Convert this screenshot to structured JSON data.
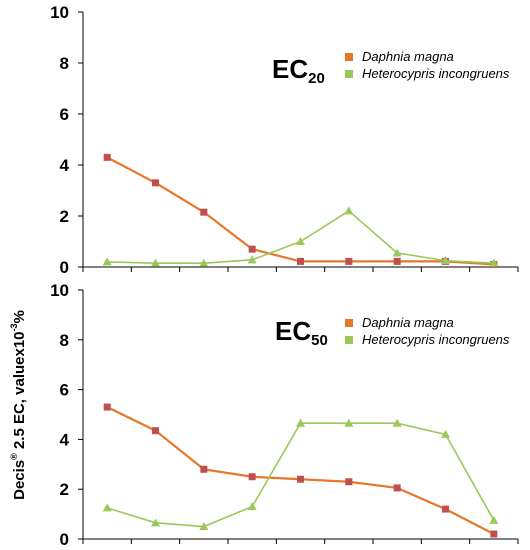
{
  "chart_data": [
    {
      "type": "line",
      "title_main": "EC",
      "title_sub": "20",
      "ylim": [
        0,
        10
      ],
      "yticks": [
        0,
        2,
        4,
        6,
        8,
        10
      ],
      "x": [
        1,
        2,
        3,
        4,
        5,
        6,
        7,
        8,
        9
      ],
      "grid": false,
      "legend_position": "top-right",
      "series": [
        {
          "name": "Daphnia magna",
          "color": "#e8762b",
          "marker_color": "#c0504d",
          "marker": "square",
          "values": [
            4.3,
            3.3,
            2.15,
            0.7,
            0.22,
            0.22,
            0.22,
            0.22,
            0.1
          ]
        },
        {
          "name": "Heterocypris incongruens",
          "color": "#9bc85a",
          "marker_color": "#9bc85a",
          "marker": "triangle",
          "values": [
            0.2,
            0.15,
            0.15,
            0.28,
            1.0,
            2.2,
            0.55,
            0.25,
            0.15
          ]
        }
      ]
    },
    {
      "type": "line",
      "title_main": "EC",
      "title_sub": "50",
      "ylim": [
        0,
        10
      ],
      "yticks": [
        0,
        2,
        4,
        6,
        8,
        10
      ],
      "x": [
        1,
        2,
        3,
        4,
        5,
        6,
        7,
        8,
        9
      ],
      "grid": false,
      "legend_position": "top-right",
      "series": [
        {
          "name": "Daphnia magna",
          "color": "#e8762b",
          "marker_color": "#c0504d",
          "marker": "square",
          "values": [
            5.3,
            4.35,
            2.8,
            2.5,
            2.4,
            2.3,
            2.05,
            1.2,
            0.2
          ]
        },
        {
          "name": "Heterocypris incongruens",
          "color": "#9bc85a",
          "marker_color": "#9bc85a",
          "marker": "triangle",
          "values": [
            1.25,
            0.65,
            0.5,
            1.3,
            4.65,
            4.65,
            4.65,
            4.2,
            0.75
          ]
        }
      ]
    }
  ],
  "y_axis_label": {
    "prefix": "Decis",
    "reg_mark": "®",
    "middle": " 2.5 EC, valuex10",
    "exponent": "-3",
    "suffix": "%"
  }
}
